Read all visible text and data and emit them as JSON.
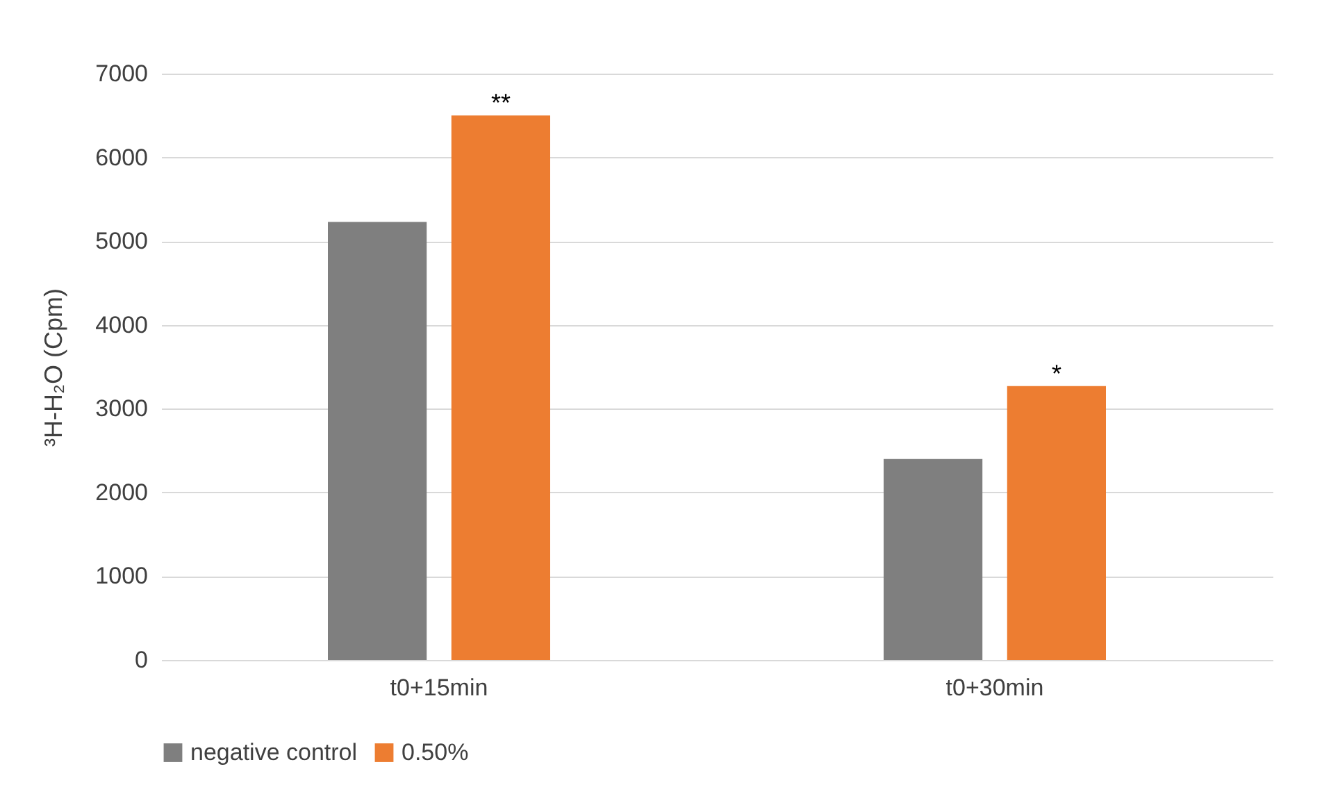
{
  "chart_data": {
    "type": "bar",
    "ylabel": "³H-H₂O (Cpm)",
    "categories": [
      "t0+15min",
      "t0+30min"
    ],
    "series": [
      {
        "name": "negative control",
        "color": "#7f7f7f",
        "values": [
          5230,
          2400
        ]
      },
      {
        "name": "0.50%",
        "color": "#ed7d31",
        "values": [
          6500,
          3270
        ],
        "value_labels": [
          "**",
          "*"
        ]
      }
    ],
    "ylim": [
      0,
      7000
    ],
    "yticks": [
      0,
      1000,
      2000,
      3000,
      4000,
      5000,
      6000,
      7000
    ],
    "grid": "y",
    "legend": "bottom"
  }
}
